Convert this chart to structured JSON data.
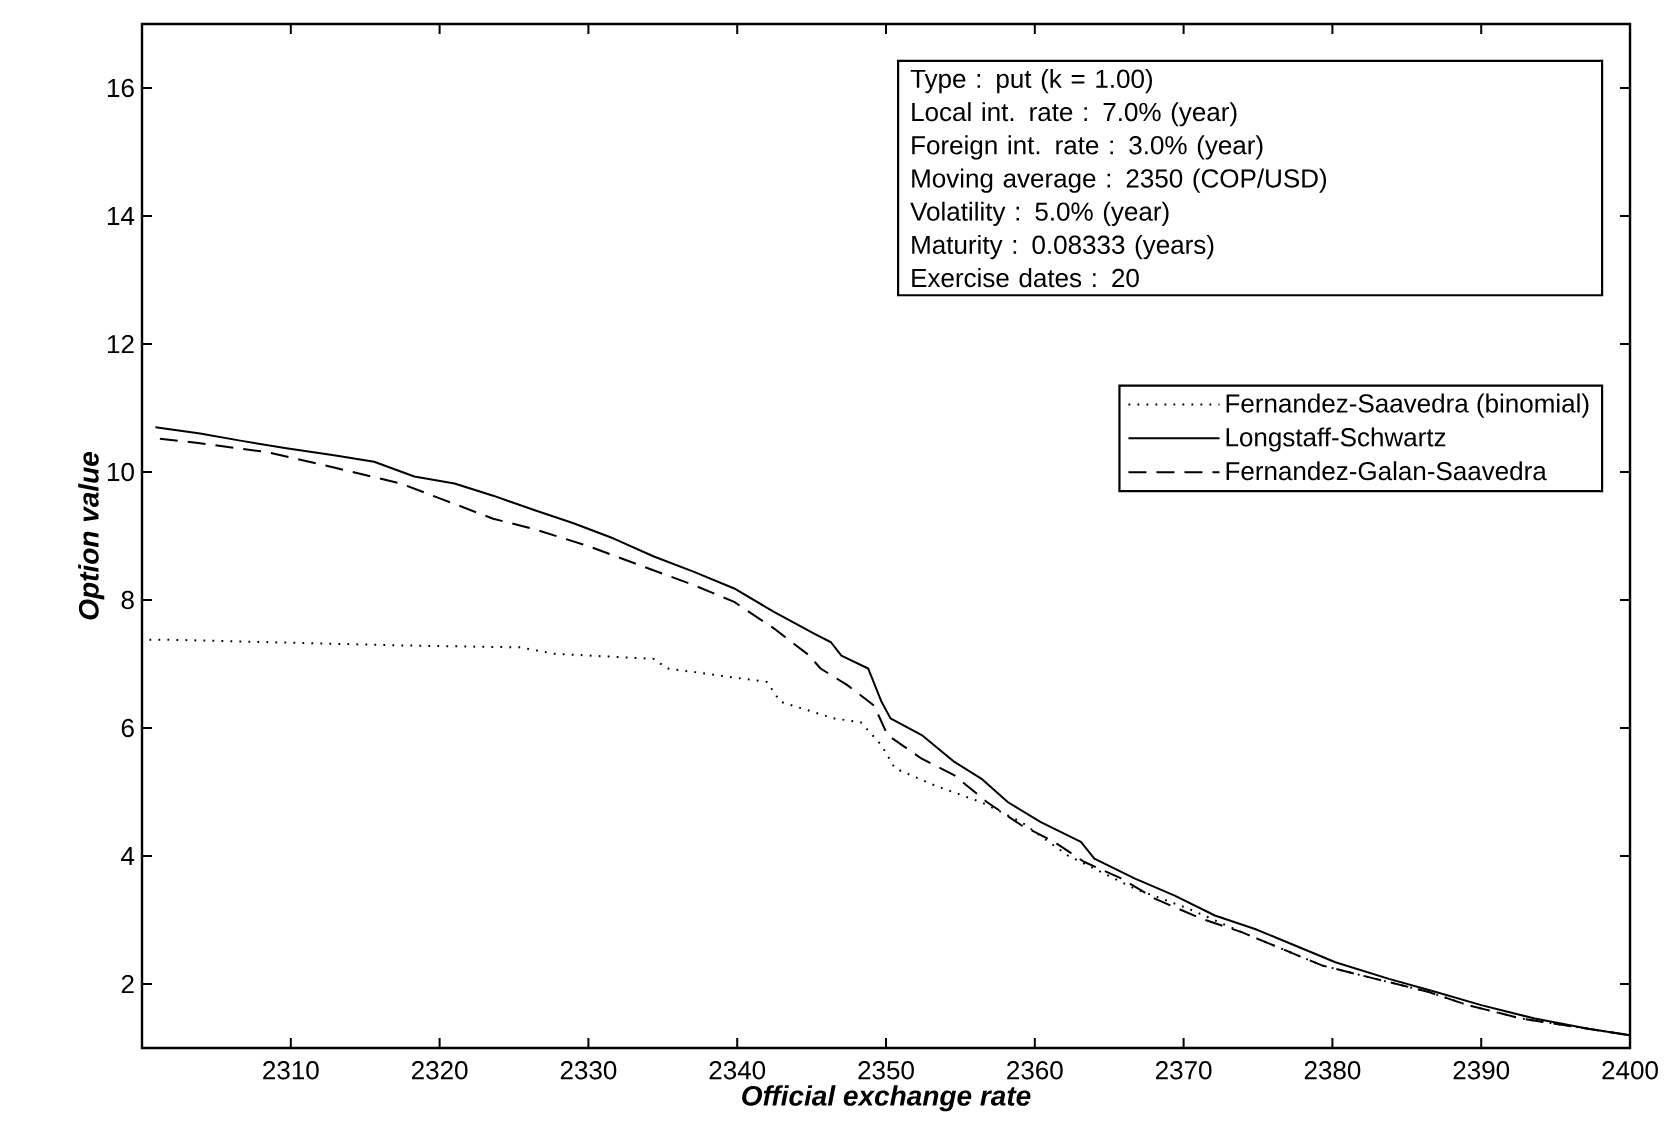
{
  "chart_data": {
    "type": "line",
    "xlabel": "Official exchange rate",
    "ylabel": "Option value",
    "xlim": [
      2300,
      2400
    ],
    "xticks": [
      2310,
      2320,
      2330,
      2340,
      2350,
      2360,
      2370,
      2380,
      2390,
      2400
    ],
    "ylim": [
      1,
      17
    ],
    "yticks": [
      2,
      4,
      6,
      8,
      10,
      12,
      14,
      16
    ],
    "legend": "top right",
    "annotations": [
      "Type :  put (k = 1.00)",
      "Local int. rate :  7.0% (year)",
      "Foreign int. rate : 3.0% (year)",
      "Moving average :  2350 (COP/USD)",
      "Volatility : 5.0% (year)",
      "Maturity : 0.08333 (years)",
      "Exercise dates : 20"
    ],
    "series": [
      {
        "name": "Fernandez-Saavedra (binomial)",
        "color": "#000000",
        "line_style": "dotted",
        "x": [
          2300.5,
          2301.7,
          2317.4,
          2325.4,
          2327.7,
          2334.4,
          2335.3,
          2342.0,
          2342.9,
          2346.5,
          2348.3,
          2349.7,
          2350.6,
          2353.3,
          2356.4,
          2359.1,
          2362.2,
          2366.7,
          2370.3,
          2373.9,
          2376.6,
          2379.3,
          2382.9,
          2386.4,
          2389.1,
          2392.7,
          2397.2,
          2400
        ],
        "values": [
          7.38,
          7.38,
          7.29,
          7.26,
          7.16,
          7.08,
          6.93,
          6.72,
          6.41,
          6.15,
          6.09,
          5.73,
          5.37,
          5.1,
          4.84,
          4.53,
          4.01,
          3.49,
          3.18,
          2.81,
          2.55,
          2.29,
          2.08,
          1.88,
          1.67,
          1.46,
          1.3,
          1.2
        ]
      },
      {
        "name": "Longstaff-Schwartz",
        "color": "#000000",
        "line_style": "solid",
        "x": [
          2300.9,
          2303.9,
          2306.6,
          2309.7,
          2312.9,
          2315.6,
          2318.3,
          2321.0,
          2323.6,
          2326.3,
          2329.0,
          2331.7,
          2334.4,
          2337.1,
          2339.8,
          2342.5,
          2345.2,
          2346.3,
          2347.0,
          2348.8,
          2349.7,
          2350.3,
          2352.4,
          2354.6,
          2356.4,
          2358.2,
          2360.4,
          2363.1,
          2364.0,
          2366.7,
          2369.4,
          2372.1,
          2374.8,
          2377.5,
          2380.2,
          2383.8,
          2386.9,
          2390.0,
          2393.6,
          2397.2,
          2400
        ],
        "values": [
          10.7,
          10.6,
          10.49,
          10.37,
          10.26,
          10.16,
          9.93,
          9.82,
          9.63,
          9.41,
          9.2,
          8.96,
          8.68,
          8.44,
          8.18,
          7.81,
          7.47,
          7.34,
          7.13,
          6.93,
          6.41,
          6.15,
          5.89,
          5.47,
          5.21,
          4.84,
          4.53,
          4.22,
          3.96,
          3.65,
          3.38,
          3.07,
          2.86,
          2.6,
          2.34,
          2.08,
          1.88,
          1.67,
          1.46,
          1.3,
          1.2
        ]
      },
      {
        "name": "Fernandez-Galan-Saavedra",
        "color": "#000000",
        "line_style": "dashed",
        "x": [
          2301.2,
          2303.9,
          2308.4,
          2312.9,
          2317.4,
          2320.1,
          2323.6,
          2326.3,
          2329.9,
          2333.5,
          2337.1,
          2339.8,
          2342.5,
          2344.8,
          2345.6,
          2347.4,
          2349.2,
          2350.1,
          2352.4,
          2354.6,
          2356.8,
          2359.1,
          2361.3,
          2363.3,
          2365.8,
          2368.1,
          2371.2,
          2373.9,
          2376.6,
          2379.3,
          2382.9,
          2386.4,
          2389.1,
          2392.7,
          2397.2,
          2400
        ],
        "values": [
          10.52,
          10.45,
          10.31,
          10.07,
          9.82,
          9.58,
          9.27,
          9.11,
          8.85,
          8.54,
          8.23,
          7.97,
          7.55,
          7.14,
          6.93,
          6.67,
          6.35,
          5.89,
          5.52,
          5.26,
          4.84,
          4.48,
          4.22,
          3.91,
          3.65,
          3.33,
          3.02,
          2.81,
          2.55,
          2.29,
          2.08,
          1.88,
          1.67,
          1.46,
          1.3,
          1.2
        ]
      }
    ]
  }
}
